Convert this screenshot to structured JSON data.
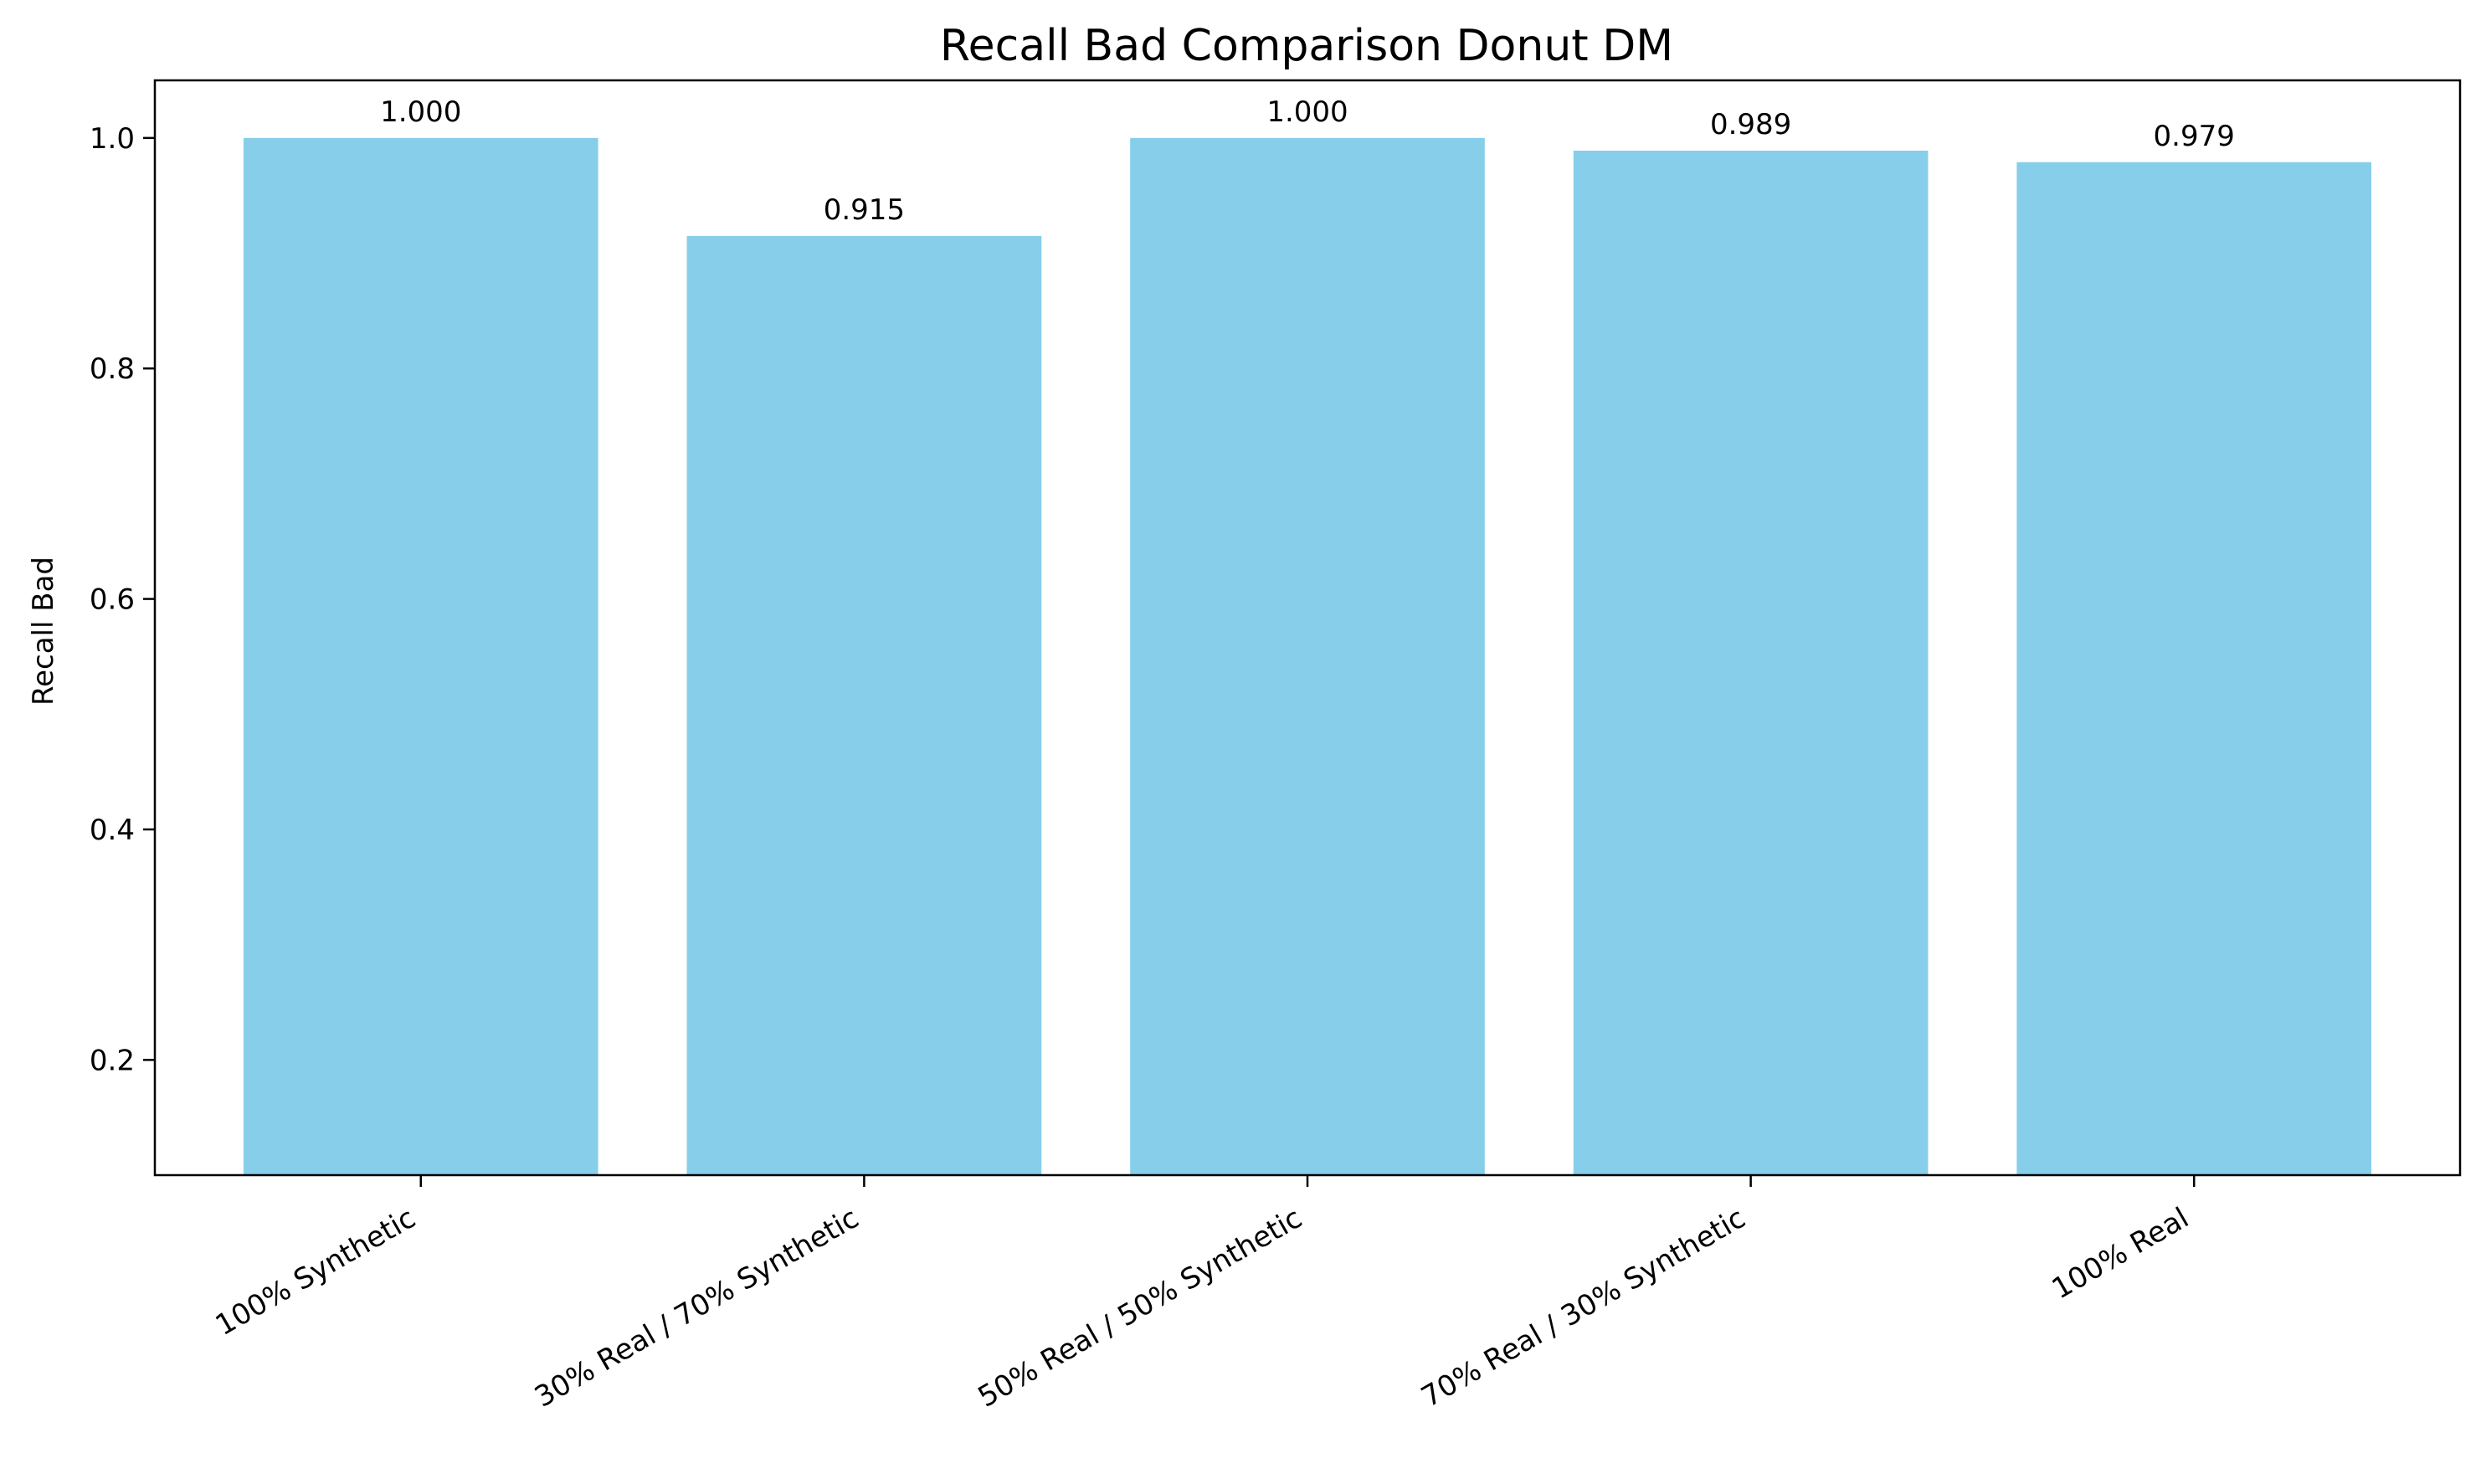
{
  "chart_data": {
    "type": "bar",
    "title": "Recall Bad Comparison Donut DM",
    "xlabel": "",
    "ylabel": "Recall Bad",
    "categories": [
      "100% Synthetic",
      "30% Real / 70% Synthetic",
      "50% Real / 50% Synthetic",
      "70% Real / 30% Synthetic",
      "100% Real"
    ],
    "values": [
      1.0,
      0.915,
      1.0,
      0.989,
      0.979
    ],
    "value_labels": [
      "1.000",
      "0.915",
      "1.000",
      "0.989",
      "0.979"
    ],
    "ylim": [
      0.1,
      1.05
    ],
    "yticks": [
      0.2,
      0.4,
      0.6,
      0.8,
      1.0
    ],
    "ytick_labels": [
      "0.2",
      "0.4",
      "0.6",
      "0.8",
      "1.0"
    ],
    "grid": false,
    "legend": "none",
    "bar_color": "#87CEEB",
    "axis_color": "#000000"
  }
}
